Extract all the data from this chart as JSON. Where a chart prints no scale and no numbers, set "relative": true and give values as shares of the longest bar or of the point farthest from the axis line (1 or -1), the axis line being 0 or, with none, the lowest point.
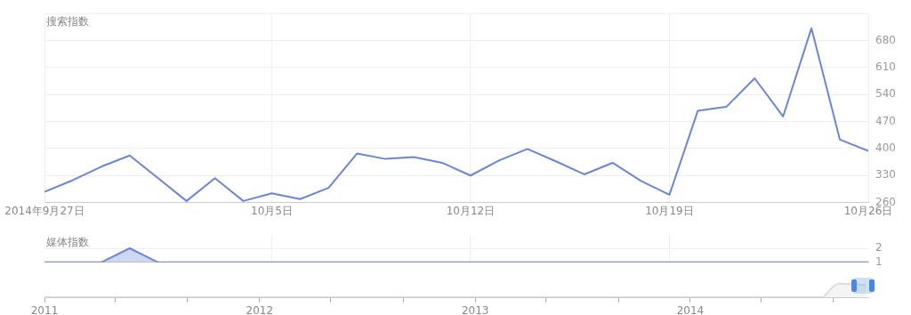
{
  "chart_data": [
    {
      "type": "line",
      "title": "搜索指数",
      "x": [
        "2014-09-27",
        "2014-09-28",
        "2014-09-29",
        "2014-09-30",
        "2014-10-01",
        "2014-10-02",
        "2014-10-03",
        "2014-10-04",
        "2014-10-05",
        "2014-10-06",
        "2014-10-07",
        "2014-10-08",
        "2014-10-09",
        "2014-10-10",
        "2014-10-11",
        "2014-10-12",
        "2014-10-13",
        "2014-10-14",
        "2014-10-15",
        "2014-10-16",
        "2014-10-17",
        "2014-10-18",
        "2014-10-19",
        "2014-10-20",
        "2014-10-21",
        "2014-10-22",
        "2014-10-23",
        "2014-10-24",
        "2014-10-25",
        "2014-10-26"
      ],
      "series": [
        {
          "color": "#6b86d8",
          "values": [
            288,
            318,
            353,
            382,
            323,
            264,
            323,
            264,
            284,
            269,
            298,
            387,
            373,
            378,
            363,
            330,
            369,
            399,
            367,
            333,
            363,
            316,
            280,
            498,
            508,
            582,
            483,
            712,
            423,
            394
          ]
        }
      ],
      "xlim": [
        "2014-09-27",
        "2014-10-26"
      ],
      "xticks": [
        {
          "value": "2014-09-27",
          "label": "2014年9月27日"
        },
        {
          "value": "2014-10-05",
          "label": "10月5日"
        },
        {
          "value": "2014-10-12",
          "label": "10月12日"
        },
        {
          "value": "2014-10-19",
          "label": "10月19日"
        },
        {
          "value": "2014-10-26",
          "label": "10月26日"
        }
      ],
      "ylim": [
        260,
        750
      ],
      "yticks": [
        260,
        330,
        400,
        470,
        540,
        610,
        680,
        {
          "value": 750,
          "label": null
        }
      ],
      "grid": true
    },
    {
      "type": "area",
      "title": "媒体指数",
      "x": [
        "2014-09-27",
        "2014-09-28",
        "2014-09-29",
        "2014-09-30",
        "2014-10-01",
        "2014-10-02",
        "2014-10-26"
      ],
      "series": [
        {
          "color": "#6b86d8",
          "values": [
            1,
            1,
            1,
            2,
            1,
            1,
            1
          ]
        }
      ],
      "xlim": [
        "2014-09-27",
        "2014-10-26"
      ],
      "xticks": [
        {
          "value": "2014-10-05",
          "label": null
        },
        {
          "value": "2014-10-12",
          "label": null
        },
        {
          "value": "2014-10-19",
          "label": null
        }
      ],
      "ylim": [
        1,
        3
      ],
      "yticks": [
        1,
        2
      ],
      "tick_labels": "y",
      "grid": true
    },
    {
      "type": "area",
      "relative": true,
      "x": [
        "2011-01-01",
        "2014-08-15",
        "2014-09-01",
        "2014-09-10",
        "2014-10-26"
      ],
      "series": [
        {
          "color": "#dddddd",
          "values": [
            0,
            0,
            0.8,
            1,
            0.9
          ]
        }
      ],
      "xlim": [
        "2011-01-01",
        "2014-10-30"
      ],
      "xticks": [
        {
          "value": "2011",
          "label": "2011"
        },
        {
          "value": "2011-05",
          "label": null
        },
        {
          "value": "2011-09",
          "label": null
        },
        {
          "value": "2012",
          "label": "2012"
        },
        {
          "value": "2012-05",
          "label": null
        },
        {
          "value": "2012-09",
          "label": null
        },
        {
          "value": "2013",
          "label": "2013"
        },
        {
          "value": "2013-05",
          "label": null
        },
        {
          "value": "2013-09",
          "label": null
        },
        {
          "value": "2014",
          "label": "2014"
        },
        {
          "value": "2014-05",
          "label": null
        },
        {
          "value": "2014-09",
          "label": null
        }
      ],
      "tick_labels": "x"
    }
  ]
}
